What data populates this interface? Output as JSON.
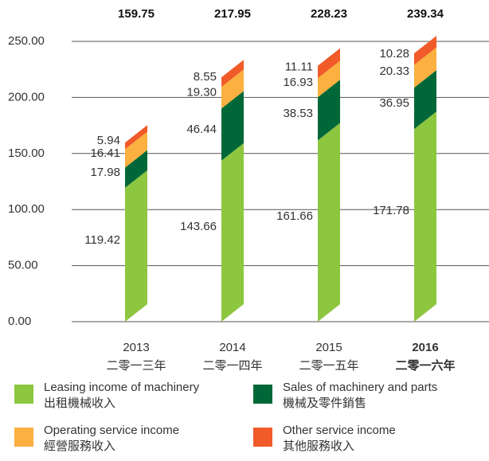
{
  "chart_data": {
    "type": "bar",
    "stacked": true,
    "categories": [
      "2013",
      "2014",
      "2015",
      "2016"
    ],
    "categories_zh": [
      "二零一三年",
      "二零一四年",
      "二零一五年",
      "二零一六年"
    ],
    "highlight_index": 3,
    "highlight_color": "#f7941d",
    "totals": [
      159.75,
      217.95,
      228.23,
      239.34
    ],
    "series": [
      {
        "name": "Leasing income of machinery",
        "name_zh": "出租機械收入",
        "color": "#8dc63f",
        "values": [
          119.42,
          143.66,
          161.66,
          171.78
        ]
      },
      {
        "name": "Sales of machinery and parts",
        "name_zh": "機械及零件銷售",
        "color": "#006838",
        "values": [
          17.98,
          46.44,
          38.53,
          36.95
        ]
      },
      {
        "name": "Operating service income",
        "name_zh": "經營服務收入",
        "color": "#fbb040",
        "values": [
          16.41,
          19.3,
          16.93,
          20.33
        ],
        "value_labels": [
          "16.41",
          "19.30",
          "16.93",
          "20.33"
        ]
      },
      {
        "name": "Other service income",
        "name_zh": "其他服務收入",
        "color": "#f15a29",
        "values": [
          5.94,
          8.55,
          11.11,
          10.28
        ]
      }
    ],
    "ylim": [
      0,
      250
    ],
    "yticks": [
      {
        "value": 0,
        "label": "0.00"
      },
      {
        "value": 50,
        "label": "50.00"
      },
      {
        "value": 100,
        "label": "100.00"
      },
      {
        "value": 150,
        "label": "150.00"
      },
      {
        "value": 200,
        "label": "200.00"
      },
      {
        "value": 250,
        "label": "250.00"
      }
    ],
    "grid": true
  }
}
